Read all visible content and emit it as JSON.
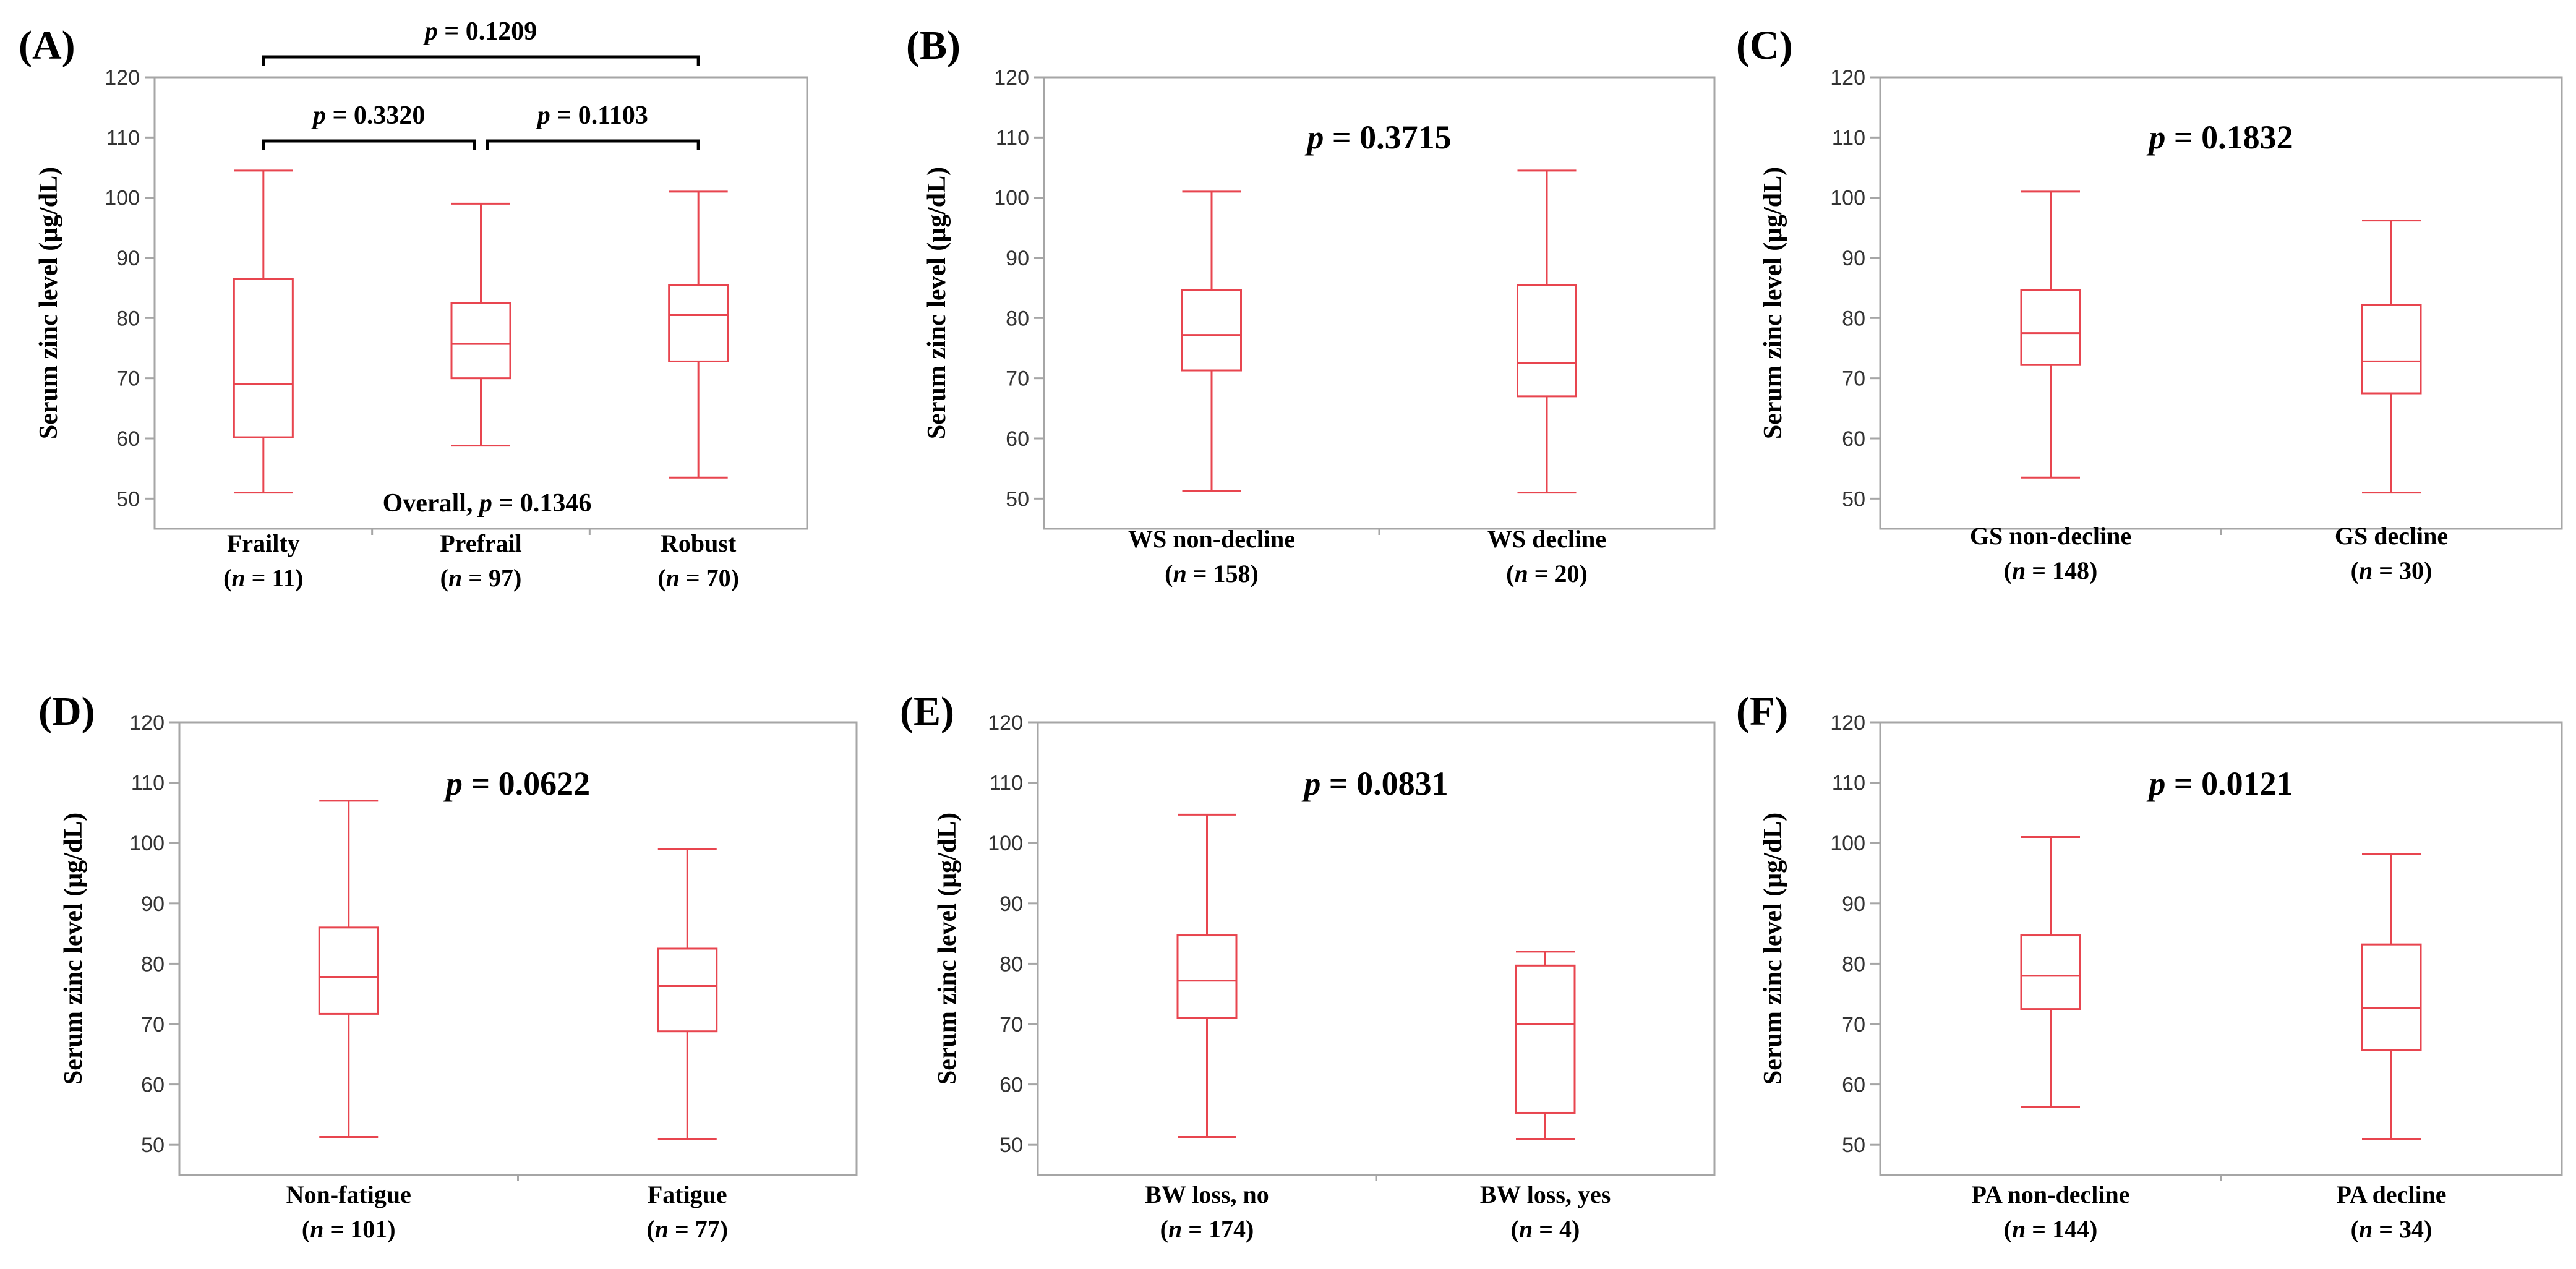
{
  "figure": {
    "style": {
      "box_color": "#e8454f",
      "axis_color": "#a6a6a6",
      "text_color": "#000000"
    }
  },
  "chart_data": [
    {
      "type": "boxplot",
      "panel_label": "(A)",
      "ylabel": "Serum zinc level (μg/dL)",
      "ylim": [
        45,
        120
      ],
      "yticks": [
        50,
        60,
        70,
        80,
        90,
        100,
        110,
        120
      ],
      "categories": [
        {
          "name": "Frailty",
          "n_label": "n = 11"
        },
        {
          "name": "Prefrail",
          "n_label": "n = 97"
        },
        {
          "name": "Robust",
          "n_label": "n = 70"
        }
      ],
      "boxes": [
        {
          "min": 51,
          "q1": 60.2,
          "median": 69,
          "q3": 86.5,
          "max": 104.5
        },
        {
          "min": 58.8,
          "q1": 70,
          "median": 75.7,
          "q3": 82.5,
          "max": 99
        },
        {
          "min": 53.5,
          "q1": 72.8,
          "median": 80.5,
          "q3": 85.5,
          "max": 101
        }
      ],
      "comparisons": [
        {
          "from": 0,
          "to": 1,
          "level": 1,
          "label": "p = 0.3320"
        },
        {
          "from": 1,
          "to": 2,
          "level": 1,
          "label": "p = 0.1103"
        },
        {
          "from": 0,
          "to": 2,
          "level": 2,
          "label": "p = 0.1209"
        }
      ],
      "overall_label": "Overall, p = 0.1346"
    },
    {
      "type": "boxplot",
      "panel_label": "(B)",
      "ylabel": "Serum zinc level (μg/dL)",
      "ylim": [
        45,
        120
      ],
      "yticks": [
        50,
        60,
        70,
        80,
        90,
        100,
        110,
        120
      ],
      "categories": [
        {
          "name": "WS non-decline",
          "n_label": "n = 158"
        },
        {
          "name": "WS decline",
          "n_label": "n = 20"
        }
      ],
      "boxes": [
        {
          "min": 51.3,
          "q1": 71.3,
          "median": 77.2,
          "q3": 84.7,
          "max": 101
        },
        {
          "min": 51,
          "q1": 67,
          "median": 72.5,
          "q3": 85.5,
          "max": 104.5
        }
      ],
      "p_label": "p = 0.3715"
    },
    {
      "type": "boxplot",
      "panel_label": "(C)",
      "ylabel": "Serum zinc level (μg/dL)",
      "ylim": [
        45,
        120
      ],
      "yticks": [
        50,
        60,
        70,
        80,
        90,
        100,
        110,
        120
      ],
      "categories": [
        {
          "name": "GS non-decline",
          "n_label": "n = 148"
        },
        {
          "name": "GS decline",
          "n_label": "n = 30"
        }
      ],
      "boxes": [
        {
          "min": 53.5,
          "q1": 72.2,
          "median": 77.5,
          "q3": 84.7,
          "max": 101
        },
        {
          "min": 51,
          "q1": 67.5,
          "median": 72.8,
          "q3": 82.2,
          "max": 96.2
        }
      ],
      "p_label": "p = 0.1832"
    },
    {
      "type": "boxplot",
      "panel_label": "(D)",
      "ylabel": "Serum zinc level (μg/dL)",
      "ylim": [
        45,
        120
      ],
      "yticks": [
        50,
        60,
        70,
        80,
        90,
        100,
        110,
        120
      ],
      "categories": [
        {
          "name": "Non-fatigue",
          "n_label": "n = 101"
        },
        {
          "name": "Fatigue",
          "n_label": "n = 77"
        }
      ],
      "boxes": [
        {
          "min": 51.3,
          "q1": 71.7,
          "median": 77.8,
          "q3": 86,
          "max": 107
        },
        {
          "min": 51,
          "q1": 68.8,
          "median": 76.3,
          "q3": 82.5,
          "max": 99
        }
      ],
      "p_label": "p = 0.0622"
    },
    {
      "type": "boxplot",
      "panel_label": "(E)",
      "ylabel": "Serum zinc level (μg/dL)",
      "ylim": [
        45,
        120
      ],
      "yticks": [
        50,
        60,
        70,
        80,
        90,
        100,
        110,
        120
      ],
      "categories": [
        {
          "name": "BW loss, no",
          "n_label": "n = 174"
        },
        {
          "name": "BW loss, yes",
          "n_label": "n = 4"
        }
      ],
      "boxes": [
        {
          "min": 51.3,
          "q1": 71,
          "median": 77.2,
          "q3": 84.7,
          "max": 104.7
        },
        {
          "min": 51,
          "q1": 55.3,
          "median": 70,
          "q3": 79.7,
          "max": 82
        }
      ],
      "p_label": "p = 0.0831"
    },
    {
      "type": "boxplot",
      "panel_label": "(F)",
      "ylabel": "Serum zinc level (μg/dL)",
      "ylim": [
        45,
        120
      ],
      "yticks": [
        50,
        60,
        70,
        80,
        90,
        100,
        110,
        120
      ],
      "categories": [
        {
          "name": "PA non-decline",
          "n_label": "n = 144"
        },
        {
          "name": "PA decline",
          "n_label": "n = 34"
        }
      ],
      "boxes": [
        {
          "min": 56.3,
          "q1": 72.5,
          "median": 78,
          "q3": 84.7,
          "max": 101
        },
        {
          "min": 51,
          "q1": 65.7,
          "median": 72.7,
          "q3": 83.2,
          "max": 98.2
        }
      ],
      "p_label": "p = 0.0121"
    }
  ]
}
